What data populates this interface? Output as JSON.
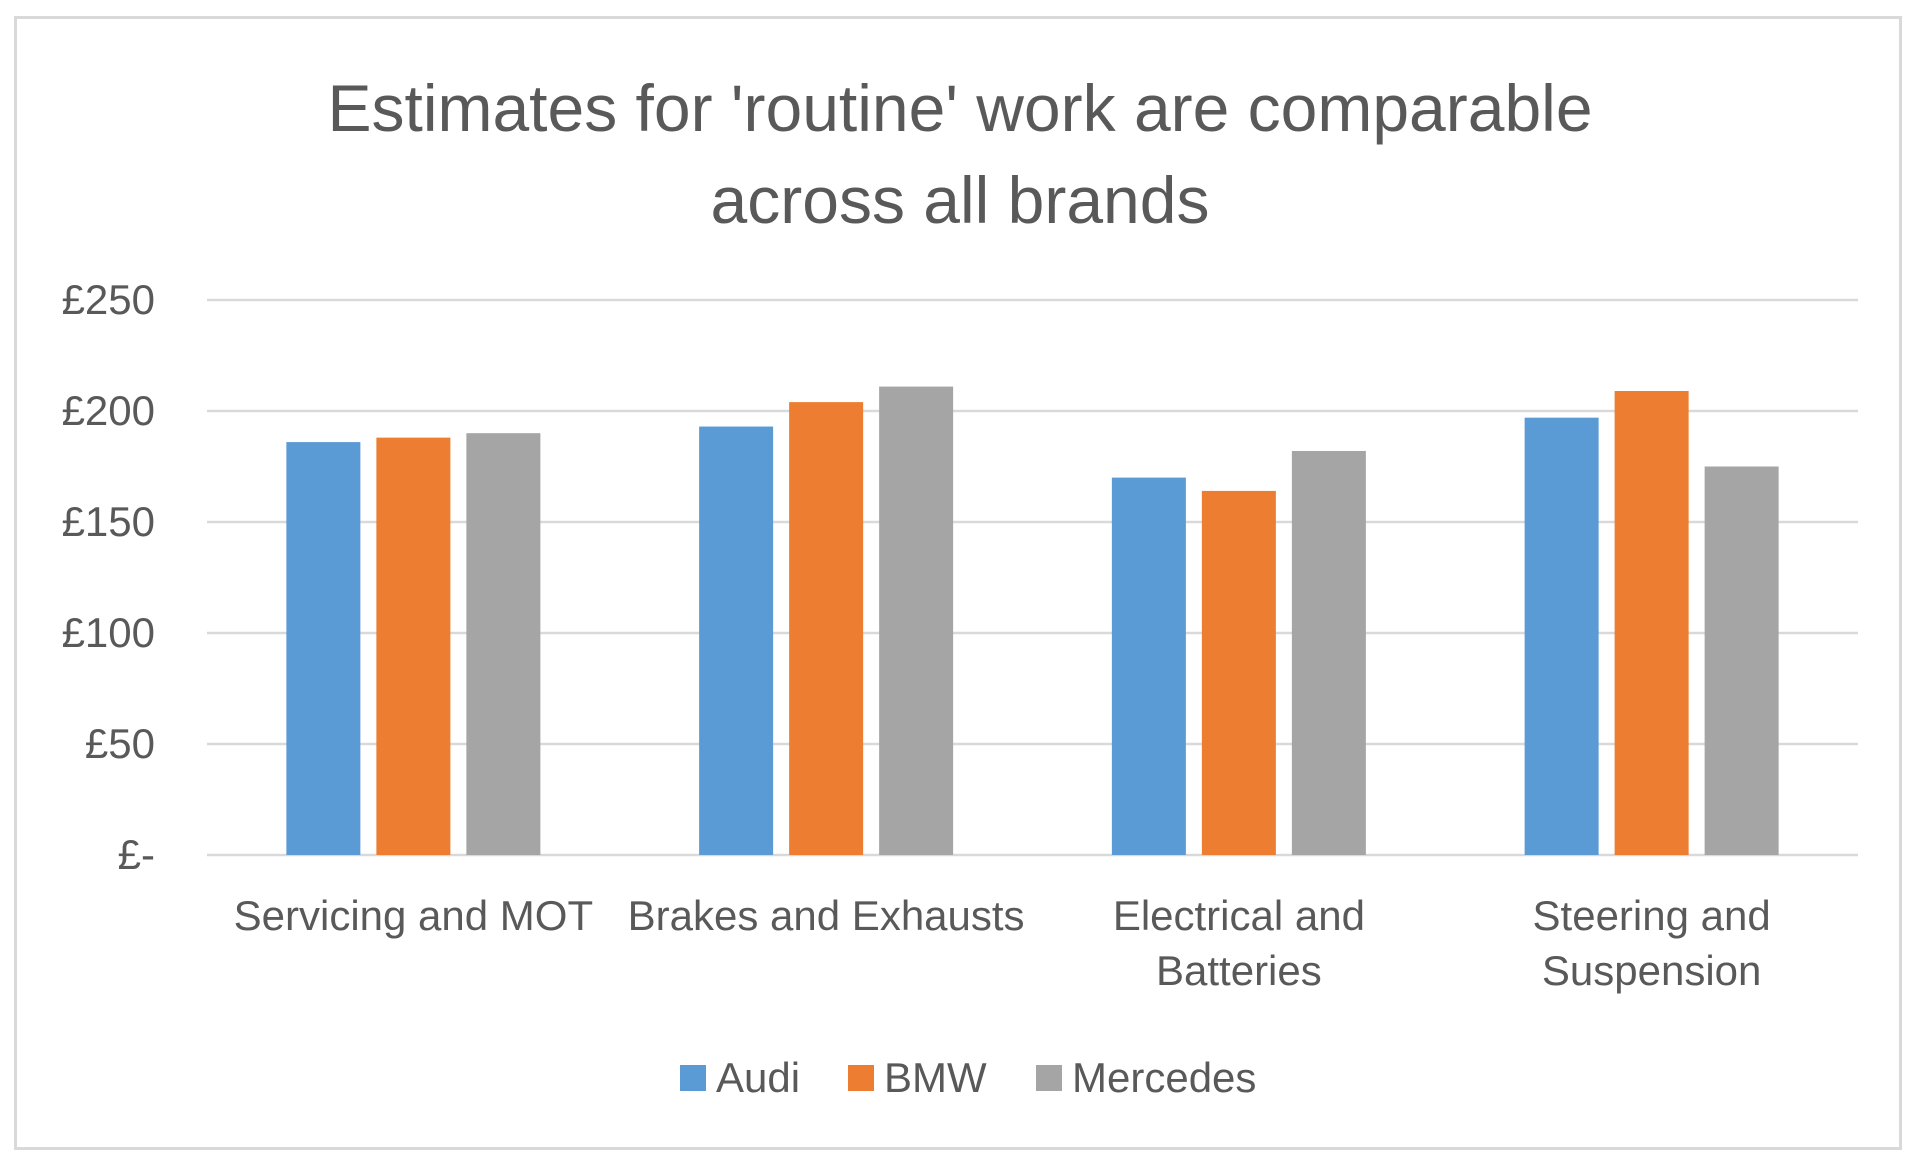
{
  "chart_data": {
    "type": "bar",
    "title": "Estimates for 'routine' work are comparable across all brands",
    "title_lines": [
      "Estimates for 'routine' work are comparable",
      "across all brands"
    ],
    "categories": [
      "Servicing and MOT",
      "Brakes and Exhausts",
      "Electrical and Batteries",
      "Steering and Suspension"
    ],
    "category_lines": [
      [
        "Servicing and MOT"
      ],
      [
        "Brakes and Exhausts"
      ],
      [
        "Electrical and",
        "Batteries"
      ],
      [
        "Steering and",
        "Suspension"
      ]
    ],
    "series": [
      {
        "name": "Audi",
        "color": "#5b9bd5",
        "values": [
          186,
          193,
          170,
          197
        ]
      },
      {
        "name": "BMW",
        "color": "#ed7d31",
        "values": [
          188,
          204,
          164,
          209
        ]
      },
      {
        "name": "Mercedes",
        "color": "#a5a5a5",
        "values": [
          190,
          211,
          182,
          175
        ]
      }
    ],
    "ylim": [
      0,
      250
    ],
    "yticks": [
      0,
      50,
      100,
      150,
      200,
      250
    ],
    "ytick_labels": [
      "£-",
      "£50",
      "£100",
      "£150",
      "£200",
      "£250"
    ],
    "grid": true,
    "legend_position": "bottom",
    "gridline_color": "#d9d9d9"
  }
}
